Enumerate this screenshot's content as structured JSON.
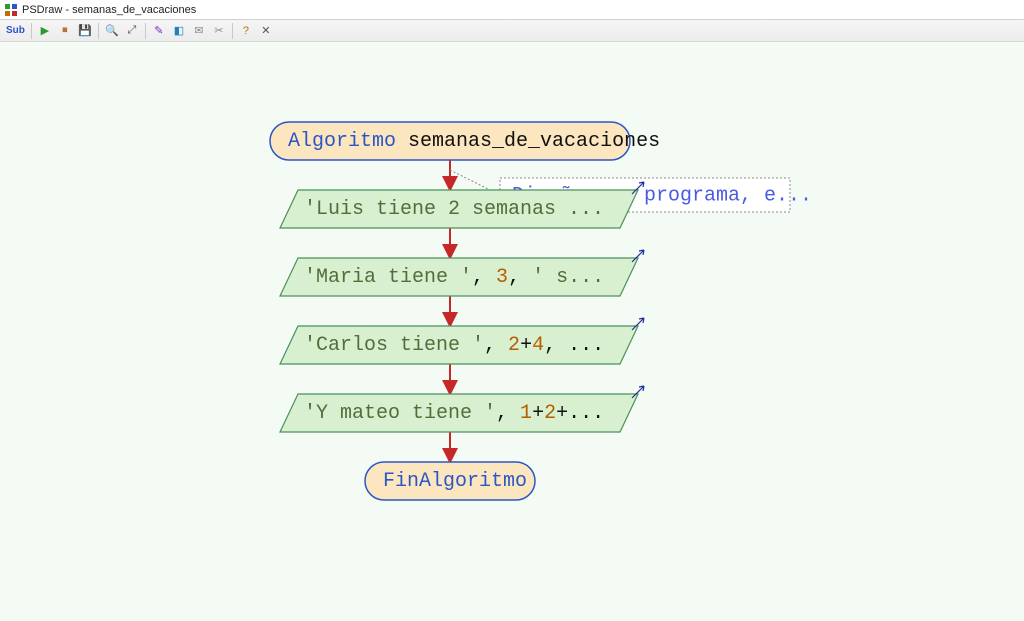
{
  "window": {
    "title": "PSDraw - semanas_de_vacaciones"
  },
  "toolbar": {
    "items": [
      {
        "name": "sub-icon",
        "label": "Sub",
        "color": "#2a56c6"
      },
      {
        "sep": true
      },
      {
        "name": "play-icon",
        "glyph": "▶",
        "color": "#2e9a2e"
      },
      {
        "name": "stop-icon",
        "glyph": "⏹",
        "color": "#c07030"
      },
      {
        "name": "save-icon",
        "glyph": "💾",
        "color": "#555"
      },
      {
        "sep": true
      },
      {
        "name": "zoom-in-icon",
        "glyph": "🔍",
        "color": "#555"
      },
      {
        "name": "zoom-fit-icon",
        "glyph": "⤢",
        "color": "#555"
      },
      {
        "sep": true
      },
      {
        "name": "style-icon",
        "glyph": "✎",
        "color": "#7030c0"
      },
      {
        "name": "shapes-icon",
        "glyph": "◧",
        "color": "#2080c0"
      },
      {
        "name": "comment-icon",
        "glyph": "✉",
        "color": "#888"
      },
      {
        "name": "crop-icon",
        "glyph": "✂",
        "color": "#888"
      },
      {
        "sep": true
      },
      {
        "name": "help-icon",
        "glyph": "?",
        "color": "#c07000"
      },
      {
        "name": "close-icon",
        "glyph": "✕",
        "color": "#555"
      }
    ]
  },
  "flowchart": {
    "type": "flowchart",
    "background_color": "#f4fbf4",
    "font_family": "Consolas",
    "font_size_pt": 15,
    "arrow_color": "#c62828",
    "comment_border_color": "#888888",
    "terminal": {
      "fill": "#fce6c0",
      "stroke": "#2a56c6"
    },
    "io": {
      "fill": "#d8f0d0",
      "stroke": "#4a905a"
    },
    "color_keyword": "#2a56c6",
    "color_identifier": "#111111",
    "color_string": "#586b3a",
    "color_number": "#b85c00",
    "color_comment": "#4a5be0",
    "nodes": {
      "start": {
        "kind": "terminal",
        "keyword": "Algoritmo",
        "ident": " semanas_de_vacaciones"
      },
      "comment": {
        "kind": "comment",
        "text": "Diseñar un programa, e..."
      },
      "io1": {
        "kind": "io",
        "tokens": [
          {
            "t": "str",
            "v": "'Luis tiene 2 semanas ..."
          }
        ]
      },
      "io2": {
        "kind": "io",
        "tokens": [
          {
            "t": "str",
            "v": "'Maria tiene '"
          },
          {
            "t": "op",
            "v": ", "
          },
          {
            "t": "num",
            "v": "3"
          },
          {
            "t": "op",
            "v": ", "
          },
          {
            "t": "str",
            "v": "' s..."
          }
        ]
      },
      "io3": {
        "kind": "io",
        "tokens": [
          {
            "t": "str",
            "v": "'Carlos tiene '"
          },
          {
            "t": "op",
            "v": ", "
          },
          {
            "t": "num",
            "v": "2"
          },
          {
            "t": "op",
            "v": "+"
          },
          {
            "t": "num",
            "v": "4"
          },
          {
            "t": "op",
            "v": ", ..."
          }
        ]
      },
      "io4": {
        "kind": "io",
        "tokens": [
          {
            "t": "str",
            "v": "'Y mateo tiene '"
          },
          {
            "t": "op",
            "v": ", "
          },
          {
            "t": "num",
            "v": "1"
          },
          {
            "t": "op",
            "v": "+"
          },
          {
            "t": "num",
            "v": "2"
          },
          {
            "t": "op",
            "v": "+..."
          }
        ]
      },
      "end": {
        "kind": "terminal",
        "keyword": "FinAlgoritmo",
        "ident": ""
      }
    },
    "edges": [
      [
        "start",
        "io1"
      ],
      [
        "io1",
        "io2"
      ],
      [
        "io2",
        "io3"
      ],
      [
        "io3",
        "io4"
      ],
      [
        "io4",
        "end"
      ]
    ],
    "comment_attached_to": "start"
  }
}
